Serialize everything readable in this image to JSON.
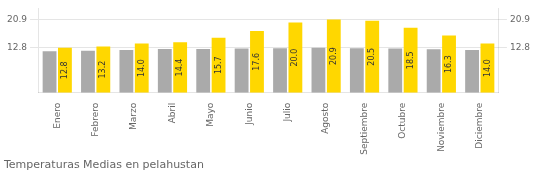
{
  "chart_data": {
    "type": "bar",
    "title": "Temperaturas Medias en pelahustan",
    "categories": [
      "Enero",
      "Febrero",
      "Marzo",
      "Abril",
      "Mayo",
      "Junio",
      "Julio",
      "Agosto",
      "Septiembre",
      "Octubre",
      "Noviembre",
      "Diciembre"
    ],
    "series": [
      {
        "color": "#AAAAAA",
        "values": [
          11.8,
          12.0,
          12.2,
          12.5,
          12.5,
          12.6,
          12.7,
          12.8,
          12.7,
          12.6,
          12.4,
          12.2
        ]
      },
      {
        "color": "#FFD700",
        "values": [
          12.8,
          13.2,
          14.0,
          14.4,
          15.7,
          17.6,
          20.0,
          20.9,
          20.5,
          18.5,
          16.3,
          14.0
        ],
        "data_labels": true,
        "value_labels": [
          "12.8",
          "13.2",
          "14.0",
          "14.4",
          "15.7",
          "17.6",
          "20.0",
          "20.9",
          "20.5",
          "18.5",
          "16.3",
          "14.0"
        ]
      }
    ],
    "ylim": [
      0,
      24.035
    ],
    "yticks": [
      12.8,
      20.9
    ],
    "grid": true
  }
}
